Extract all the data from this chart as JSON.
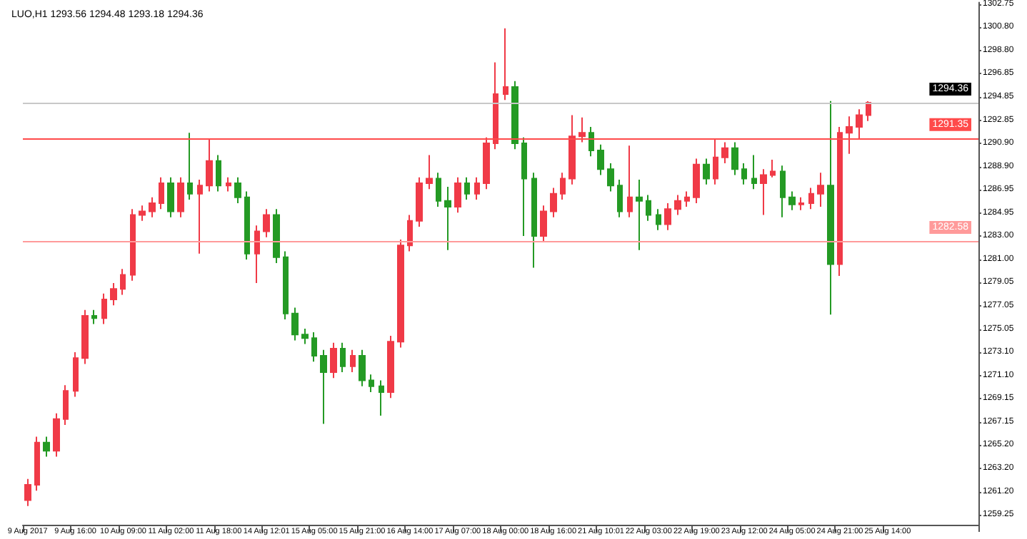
{
  "chart_data": {
    "type": "candlestick",
    "title": "LUO,H1 1293.56 1294.48 1293.18 1294.36",
    "categories": [
      "9 Aug 2017",
      null,
      null,
      null,
      null,
      "9 Aug 16:00",
      null,
      null,
      null,
      null,
      "10 Aug 09:00",
      null,
      null,
      null,
      null,
      "11 Aug 02:00",
      null,
      null,
      null,
      null,
      "11 Aug 18:00",
      null,
      null,
      null,
      null,
      "14 Aug 12:01",
      null,
      null,
      null,
      null,
      "15 Aug 05:00",
      null,
      null,
      null,
      null,
      "15 Aug 21:00",
      null,
      null,
      null,
      null,
      "16 Aug 14:00",
      null,
      null,
      null,
      null,
      "17 Aug 07:00",
      null,
      null,
      null,
      null,
      "18 Aug 00:00",
      null,
      null,
      null,
      null,
      "18 Aug 16:00",
      null,
      null,
      null,
      null,
      "21 Aug 10:01",
      null,
      null,
      null,
      null,
      "22 Aug 03:00",
      null,
      null,
      null,
      null,
      "22 Aug 19:00",
      null,
      null,
      null,
      null,
      "23 Aug 12:00",
      null,
      null,
      null,
      null,
      "24 Aug 05:00",
      null,
      null,
      null,
      null,
      "24 Aug 21:00",
      null,
      null,
      null,
      null,
      "25 Aug 14:00",
      null,
      null,
      null,
      null,
      null,
      null,
      null,
      null,
      null
    ],
    "ohlc": [
      [
        1260.5,
        1262.3,
        1260.0,
        1261.8
      ],
      [
        1261.8,
        1265.9,
        1261.3,
        1265.4
      ],
      [
        1265.4,
        1265.9,
        1264.2,
        1264.7
      ],
      [
        1264.7,
        1267.9,
        1264.2,
        1267.4
      ],
      [
        1267.4,
        1270.3,
        1266.9,
        1269.8
      ],
      [
        1269.8,
        1273.1,
        1269.3,
        1272.6
      ],
      [
        1272.6,
        1276.7,
        1272.1,
        1276.2
      ],
      [
        1276.2,
        1276.7,
        1275.5,
        1276.0
      ],
      [
        1276.0,
        1278.1,
        1275.5,
        1277.6
      ],
      [
        1277.6,
        1279.0,
        1277.1,
        1278.5
      ],
      [
        1278.5,
        1280.2,
        1278.0,
        1279.7
      ],
      [
        1279.7,
        1285.3,
        1279.2,
        1284.8
      ],
      [
        1284.8,
        1285.6,
        1284.3,
        1285.1
      ],
      [
        1285.1,
        1286.3,
        1284.6,
        1285.8
      ],
      [
        1285.8,
        1288.0,
        1285.3,
        1287.5
      ],
      [
        1287.5,
        1288.0,
        1284.6,
        1285.1
      ],
      [
        1285.1,
        1288.0,
        1284.6,
        1287.5
      ],
      [
        1287.5,
        1291.8,
        1286.1,
        1286.6
      ],
      [
        1286.6,
        1287.8,
        1281.5,
        1287.3
      ],
      [
        1287.3,
        1291.3,
        1286.8,
        1289.4
      ],
      [
        1289.4,
        1289.9,
        1286.8,
        1287.3
      ],
      [
        1287.3,
        1288.0,
        1286.8,
        1287.5
      ],
      [
        1287.5,
        1288.0,
        1285.8,
        1286.3
      ],
      [
        1286.3,
        1286.8,
        1281.0,
        1281.5
      ],
      [
        1281.5,
        1283.9,
        1279.0,
        1283.4
      ],
      [
        1283.4,
        1285.3,
        1282.9,
        1284.8
      ],
      [
        1284.8,
        1285.3,
        1280.7,
        1281.2
      ],
      [
        1281.2,
        1281.7,
        1275.9,
        1276.4
      ],
      [
        1276.4,
        1276.9,
        1274.1,
        1274.6
      ],
      [
        1274.6,
        1275.1,
        1273.8,
        1274.3
      ],
      [
        1274.3,
        1274.8,
        1272.3,
        1272.8
      ],
      [
        1272.8,
        1273.3,
        1267.0,
        1271.4
      ],
      [
        1271.4,
        1273.9,
        1270.9,
        1273.4
      ],
      [
        1273.4,
        1273.9,
        1271.4,
        1271.9
      ],
      [
        1271.9,
        1273.3,
        1271.4,
        1272.8
      ],
      [
        1272.8,
        1273.3,
        1270.2,
        1270.7
      ],
      [
        1270.7,
        1271.2,
        1269.7,
        1270.2
      ],
      [
        1270.2,
        1270.7,
        1267.7,
        1269.7
      ],
      [
        1269.7,
        1274.5,
        1269.2,
        1274.0
      ],
      [
        1274.0,
        1282.7,
        1273.5,
        1282.2
      ],
      [
        1282.2,
        1284.8,
        1281.7,
        1284.3
      ],
      [
        1284.3,
        1288.0,
        1283.8,
        1287.5
      ],
      [
        1287.5,
        1289.9,
        1287.0,
        1287.9
      ],
      [
        1287.9,
        1288.4,
        1285.5,
        1286.0
      ],
      [
        1286.0,
        1287.2,
        1281.8,
        1285.5
      ],
      [
        1285.5,
        1288.0,
        1285.0,
        1287.5
      ],
      [
        1287.5,
        1288.0,
        1286.1,
        1286.6
      ],
      [
        1286.6,
        1288.0,
        1286.1,
        1287.5
      ],
      [
        1287.5,
        1291.4,
        1287.0,
        1290.9
      ],
      [
        1290.9,
        1297.8,
        1290.4,
        1295.1
      ],
      [
        1295.1,
        1300.7,
        1294.6,
        1295.7
      ],
      [
        1295.7,
        1296.2,
        1290.4,
        1290.9
      ],
      [
        1290.9,
        1291.4,
        1283.0,
        1287.9
      ],
      [
        1287.9,
        1288.4,
        1280.3,
        1283.0
      ],
      [
        1283.0,
        1285.6,
        1282.5,
        1285.1
      ],
      [
        1285.1,
        1287.1,
        1284.6,
        1286.6
      ],
      [
        1286.6,
        1288.4,
        1286.1,
        1287.9
      ],
      [
        1287.9,
        1293.3,
        1287.4,
        1291.5
      ],
      [
        1291.5,
        1293.1,
        1291.0,
        1291.8
      ],
      [
        1291.8,
        1292.3,
        1289.8,
        1290.3
      ],
      [
        1290.3,
        1290.8,
        1288.2,
        1288.7
      ],
      [
        1288.7,
        1289.2,
        1286.8,
        1287.3
      ],
      [
        1287.3,
        1287.8,
        1284.6,
        1285.1
      ],
      [
        1285.1,
        1290.7,
        1284.6,
        1286.3
      ],
      [
        1286.3,
        1287.8,
        1281.8,
        1286.0
      ],
      [
        1286.0,
        1286.5,
        1284.3,
        1284.8
      ],
      [
        1284.8,
        1285.3,
        1283.5,
        1284.0
      ],
      [
        1284.0,
        1285.8,
        1283.5,
        1285.3
      ],
      [
        1285.3,
        1286.5,
        1284.8,
        1286.0
      ],
      [
        1286.0,
        1286.8,
        1285.5,
        1286.3
      ],
      [
        1286.3,
        1289.6,
        1285.8,
        1289.1
      ],
      [
        1289.1,
        1289.6,
        1287.4,
        1287.9
      ],
      [
        1287.9,
        1291.3,
        1287.4,
        1289.7
      ],
      [
        1289.7,
        1291.0,
        1289.2,
        1290.5
      ],
      [
        1290.5,
        1291.0,
        1288.2,
        1288.7
      ],
      [
        1288.7,
        1289.2,
        1287.4,
        1287.9
      ],
      [
        1287.9,
        1289.9,
        1287.0,
        1287.5
      ],
      [
        1287.5,
        1288.7,
        1284.8,
        1288.2
      ],
      [
        1288.2,
        1289.5,
        1288.0,
        1288.5
      ],
      [
        1288.5,
        1289.0,
        1284.6,
        1286.3
      ],
      [
        1286.3,
        1286.8,
        1285.2,
        1285.7
      ],
      [
        1285.7,
        1286.3,
        1285.2,
        1285.8
      ],
      [
        1285.8,
        1287.1,
        1285.3,
        1286.6
      ],
      [
        1286.6,
        1288.4,
        1285.5,
        1287.3
      ],
      [
        1287.3,
        1294.5,
        1276.3,
        1280.6
      ],
      [
        1280.6,
        1292.3,
        1279.6,
        1291.8
      ],
      [
        1291.8,
        1293.2,
        1290.0,
        1292.3
      ],
      [
        1292.3,
        1293.8,
        1291.3,
        1293.3
      ],
      [
        1293.3,
        1294.48,
        1292.8,
        1294.36
      ],
      null,
      null,
      null,
      null,
      null,
      null,
      null,
      null,
      null,
      null,
      null
    ],
    "colors": [
      "#f03a47",
      "#f03a47",
      "#249a24",
      "#f03a47",
      "#f03a47",
      "#f03a47",
      "#f03a47",
      "#249a24",
      "#f03a47",
      "#f03a47",
      "#f03a47",
      "#f03a47",
      "#f03a47",
      "#f03a47",
      "#f03a47",
      "#249a24",
      "#f03a47",
      "#249a24",
      "#f03a47",
      "#f03a47",
      "#249a24",
      "#f03a47",
      "#249a24",
      "#249a24",
      "#f03a47",
      "#f03a47",
      "#249a24",
      "#249a24",
      "#249a24",
      "#249a24",
      "#249a24",
      "#249a24",
      "#f03a47",
      "#249a24",
      "#f03a47",
      "#249a24",
      "#249a24",
      "#249a24",
      "#f03a47",
      "#f03a47",
      "#f03a47",
      "#f03a47",
      "#f03a47",
      "#249a24",
      "#249a24",
      "#f03a47",
      "#249a24",
      "#f03a47",
      "#f03a47",
      "#f03a47",
      "#f03a47",
      "#249a24",
      "#249a24",
      "#249a24",
      "#f03a47",
      "#f03a47",
      "#f03a47",
      "#f03a47",
      "#f03a47",
      "#249a24",
      "#249a24",
      "#249a24",
      "#249a24",
      "#f03a47",
      "#249a24",
      "#249a24",
      "#249a24",
      "#f03a47",
      "#f03a47",
      "#f03a47",
      "#f03a47",
      "#249a24",
      "#f03a47",
      "#f03a47",
      "#249a24",
      "#249a24",
      "#249a24",
      "#f03a47",
      "#f03a47",
      "#249a24",
      "#249a24",
      "#f03a47",
      "#f03a47",
      "#f03a47",
      "#249a24",
      "#f03a47",
      "#f03a47",
      "#f03a47",
      "#f03a47",
      null,
      null,
      null,
      null,
      null,
      null,
      null,
      null,
      null,
      null,
      null
    ],
    "ylim": [
      1258.4,
      1302.9
    ],
    "yticks": [
      {
        "value": 1259.25,
        "label": "1259.25"
      },
      {
        "value": 1261.2,
        "label": "1261.20"
      },
      {
        "value": 1263.2,
        "label": "1263.20"
      },
      {
        "value": 1265.2,
        "label": "1265.20"
      },
      {
        "value": 1267.15,
        "label": "1267.15"
      },
      {
        "value": 1269.15,
        "label": "1269.15"
      },
      {
        "value": 1271.1,
        "label": "1271.10"
      },
      {
        "value": 1273.1,
        "label": "1273.10"
      },
      {
        "value": 1275.05,
        "label": "1275.05"
      },
      {
        "value": 1277.05,
        "label": "1277.05"
      },
      {
        "value": 1279.05,
        "label": "1279.05"
      },
      {
        "value": 1281,
        "label": "1281.00"
      },
      {
        "value": 1283,
        "label": "1283.00"
      },
      {
        "value": 1284.95,
        "label": "1284.95"
      },
      {
        "value": 1286.95,
        "label": "1286.95"
      },
      {
        "value": 1288.9,
        "label": "1288.90"
      },
      {
        "value": 1290.9,
        "label": "1290.90"
      },
      {
        "value": 1292.85,
        "label": "1292.85"
      },
      {
        "value": 1294.85,
        "label": "1294.85"
      },
      {
        "value": 1296.85,
        "label": "1296.85"
      },
      {
        "value": 1298.8,
        "label": "1298.80"
      },
      {
        "value": 1300.8,
        "label": "1300.80"
      },
      {
        "value": 1302.75,
        "label": "1302.75"
      }
    ],
    "ref_lines": [
      {
        "axis": "y",
        "value": 1294.36,
        "label": "1294.36",
        "color": "#c8c8c8"
      },
      {
        "axis": "y",
        "value": 1291.35,
        "label": "1291.35",
        "color": "#ff4a4a"
      },
      {
        "axis": "y",
        "value": 1282.58,
        "label": "1282.58",
        "color": "#ff9a9a"
      }
    ],
    "grid": false
  }
}
